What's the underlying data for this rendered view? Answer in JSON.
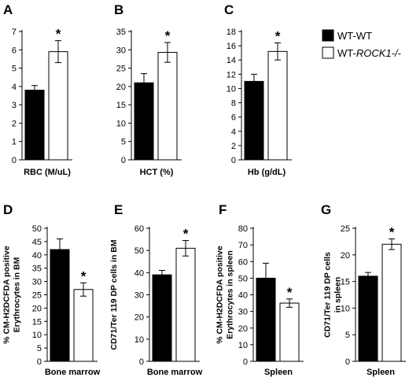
{
  "chart_data": [
    {
      "id": "A",
      "type": "bar",
      "letter": "A",
      "categories": [
        "WT-WT",
        "WT-ROCK1-/-"
      ],
      "values": [
        3.8,
        5.9
      ],
      "errors": [
        0.25,
        0.6
      ],
      "significance": [
        "",
        "*"
      ],
      "ylim": [
        0,
        7
      ],
      "yticks": [
        0,
        1,
        2,
        3,
        4,
        5,
        6,
        7
      ],
      "xlabel": "RBC (M/uL)",
      "ylabel": ""
    },
    {
      "id": "B",
      "type": "bar",
      "letter": "B",
      "categories": [
        "WT-WT",
        "WT-ROCK1-/-"
      ],
      "values": [
        21.0,
        29.3
      ],
      "errors": [
        2.5,
        2.7
      ],
      "significance": [
        "",
        "*"
      ],
      "ylim": [
        0,
        35
      ],
      "yticks": [
        0,
        5,
        10,
        15,
        20,
        25,
        30,
        35
      ],
      "xlabel": "HCT (%)",
      "ylabel": ""
    },
    {
      "id": "C",
      "type": "bar",
      "letter": "C",
      "categories": [
        "WT-WT",
        "WT-ROCK1-/-"
      ],
      "values": [
        11.0,
        15.2
      ],
      "errors": [
        1.0,
        1.2
      ],
      "significance": [
        "",
        "*"
      ],
      "ylim": [
        0,
        18
      ],
      "yticks": [
        0,
        2,
        4,
        6,
        8,
        10,
        12,
        14,
        16,
        18
      ],
      "xlabel": "Hb (g/dL)",
      "ylabel": ""
    },
    {
      "id": "D",
      "type": "bar",
      "letter": "D",
      "categories": [
        "WT-WT",
        "WT-ROCK1-/-"
      ],
      "values": [
        42.0,
        27.0
      ],
      "errors": [
        4.0,
        2.5
      ],
      "significance": [
        "",
        "*"
      ],
      "ylim": [
        0,
        50
      ],
      "yticks": [
        0,
        5,
        10,
        15,
        20,
        25,
        30,
        35,
        40,
        45,
        50
      ],
      "xlabel": "Bone marrow",
      "ylabel_lines": [
        "% CM-H2DCFDA positive",
        "Erythrocytes in BM"
      ]
    },
    {
      "id": "E",
      "type": "bar",
      "letter": "E",
      "categories": [
        "WT-WT",
        "WT-ROCK1-/-"
      ],
      "values": [
        39.0,
        51.0
      ],
      "errors": [
        2.0,
        3.5
      ],
      "significance": [
        "",
        "*"
      ],
      "ylim": [
        0,
        60
      ],
      "yticks": [
        0,
        10,
        20,
        30,
        40,
        50,
        60
      ],
      "xlabel": "Bone marrow",
      "ylabel_lines": [
        "CD71/Ter 119 DP cells in BM"
      ]
    },
    {
      "id": "F",
      "type": "bar",
      "letter": "F",
      "categories": [
        "WT-WT",
        "WT-ROCK1-/-"
      ],
      "values": [
        50.0,
        35.0
      ],
      "errors": [
        9.0,
        2.5
      ],
      "significance": [
        "",
        "*"
      ],
      "ylim": [
        0,
        80
      ],
      "yticks": [
        0,
        10,
        20,
        30,
        40,
        50,
        60,
        70,
        80
      ],
      "xlabel": "Spleen",
      "ylabel_lines": [
        "% CM-H2DCFDA positive",
        "Erythrocytes in spleen"
      ]
    },
    {
      "id": "G",
      "type": "bar",
      "letter": "G",
      "categories": [
        "WT-WT",
        "WT-ROCK1-/-"
      ],
      "values": [
        16.0,
        22.0
      ],
      "errors": [
        0.7,
        1.0
      ],
      "significance": [
        "",
        "*"
      ],
      "ylim": [
        0,
        25
      ],
      "yticks": [
        0,
        5,
        10,
        15,
        20,
        25
      ],
      "xlabel": "Spleen",
      "ylabel_lines": [
        "CD71/Ter 119 DP cells",
        "in spleen"
      ]
    }
  ],
  "legend": {
    "entries": [
      {
        "label": "WT-WT",
        "color": "#000000"
      },
      {
        "label_prefix": "WT-",
        "label_italic": "ROCK1-/-",
        "color": "#ffffff"
      }
    ]
  },
  "colors": {
    "wt": "#000000",
    "rock1": "#ffffff",
    "stroke": "#000000"
  }
}
